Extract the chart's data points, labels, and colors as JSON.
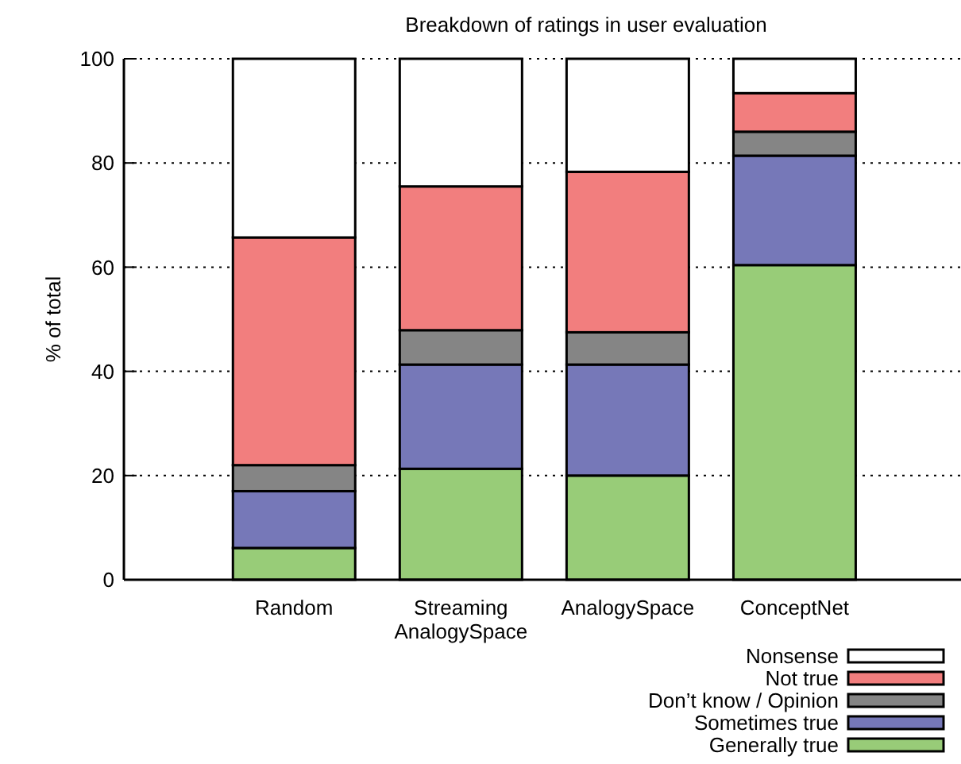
{
  "chart_data": {
    "type": "bar",
    "title": "Breakdown of ratings in user evaluation",
    "ylabel": "% of total",
    "categories": [
      "Random",
      "Streaming AnalogySpace",
      "AnalogySpace",
      "ConceptNet"
    ],
    "stacked": true,
    "ylim": [
      0,
      100
    ],
    "yticks": [
      0,
      20,
      40,
      60,
      80,
      100
    ],
    "grid": "y",
    "legend": "bottom right",
    "series": [
      {
        "name": "Generally true",
        "color": "#98cc78",
        "values": [
          6.1,
          21.3,
          20.0,
          60.4
        ]
      },
      {
        "name": "Sometimes true",
        "color": "#7678b8",
        "values": [
          10.9,
          20.0,
          21.3,
          21.0
        ]
      },
      {
        "name": "Don’t know / Opinion",
        "color": "#858585",
        "values": [
          5.0,
          6.6,
          6.2,
          4.6
        ]
      },
      {
        "name": "Not true",
        "color": "#f27e7e",
        "values": [
          43.7,
          27.6,
          30.8,
          7.4
        ]
      },
      {
        "name": "Nonsense",
        "color": "#ffffff",
        "values": [
          34.3,
          24.5,
          21.7,
          6.6
        ]
      }
    ]
  }
}
